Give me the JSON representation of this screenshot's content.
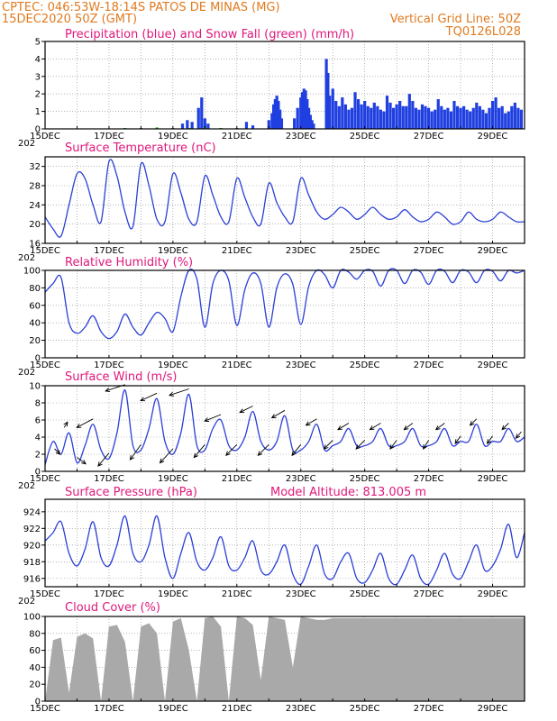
{
  "header": {
    "line1": "CPTEC:   046:53W-18:14S   PATOS DE MINAS (MG)",
    "line2": "15DEC2020 50Z (GMT)",
    "grid_note": "Vertical Grid Line: 50Z",
    "code": "TQ0126L028"
  },
  "colors": {
    "header": "#e07a1f",
    "title": "#e0177b",
    "rain": "#1f3fe0",
    "snow": "#12a012",
    "line": "#2a3fd6",
    "cloud": "#a9a9a9"
  },
  "x_axis": {
    "start_day": 15,
    "end_day": 30,
    "tick_labels": [
      "15DEC",
      "17DEC",
      "19DEC",
      "21DEC",
      "23DEC",
      "25DEC",
      "27DEC",
      "29DEC"
    ],
    "tick_days": [
      15,
      17,
      19,
      21,
      23,
      25,
      27,
      29
    ],
    "year_fragment": "202"
  },
  "chart_data": [
    {
      "id": "precip",
      "type": "bar",
      "title": "Precipitation (blue) and Snow Fall (green) (mm/h)",
      "ylim": [
        0,
        5
      ],
      "yticks": [
        0,
        1,
        2,
        3,
        4,
        5
      ],
      "series": [
        {
          "name": "Precipitation",
          "color": "#1f3fe0",
          "x": [
            19.3,
            19.45,
            19.6,
            19.8,
            19.9,
            20.0,
            20.1,
            21.3,
            21.5,
            22.0,
            22.1,
            22.15,
            22.2,
            22.25,
            22.3,
            22.35,
            22.4,
            22.8,
            22.9,
            23.0,
            23.05,
            23.1,
            23.15,
            23.2,
            23.25,
            23.3,
            23.35,
            23.4,
            23.8,
            23.85,
            23.9,
            24.0,
            24.1,
            24.2,
            24.3,
            24.4,
            24.5,
            24.6,
            24.7,
            24.8,
            24.9,
            25.0,
            25.1,
            25.2,
            25.3,
            25.4,
            25.5,
            25.6,
            25.7,
            25.8,
            25.9,
            26.0,
            26.1,
            26.2,
            26.3,
            26.4,
            26.5,
            26.6,
            26.7,
            26.8,
            26.9,
            27.0,
            27.1,
            27.2,
            27.3,
            27.4,
            27.5,
            27.6,
            27.7,
            27.8,
            27.9,
            28.0,
            28.1,
            28.2,
            28.3,
            28.4,
            28.5,
            28.6,
            28.7,
            28.8,
            28.9,
            29.0,
            29.1,
            29.2,
            29.3,
            29.4,
            29.5,
            29.6,
            29.7,
            29.8,
            29.9
          ],
          "values": [
            0.3,
            0.5,
            0.4,
            1.2,
            1.8,
            0.6,
            0.3,
            0.4,
            0.2,
            0.5,
            0.9,
            1.4,
            1.7,
            1.9,
            1.6,
            1.1,
            0.6,
            0.6,
            1.2,
            1.8,
            2.1,
            2.3,
            2.2,
            1.7,
            1.2,
            0.8,
            0.5,
            0.3,
            4.0,
            3.2,
            1.9,
            2.3,
            1.6,
            1.3,
            1.8,
            1.4,
            1.1,
            1.2,
            2.1,
            1.7,
            1.4,
            1.6,
            1.3,
            1.2,
            1.5,
            1.3,
            1.1,
            1.0,
            1.9,
            1.5,
            1.2,
            1.4,
            1.6,
            1.3,
            1.3,
            2.0,
            1.6,
            1.2,
            1.1,
            1.4,
            1.3,
            1.2,
            1.0,
            1.1,
            1.7,
            1.3,
            1.1,
            1.2,
            1.0,
            1.6,
            1.3,
            1.2,
            1.3,
            1.1,
            1.0,
            1.2,
            1.5,
            1.3,
            1.1,
            0.9,
            1.2,
            1.6,
            1.8,
            1.2,
            1.3,
            0.9,
            1.0,
            1.3,
            1.5,
            1.2,
            1.1
          ]
        },
        {
          "name": "Snow Fall",
          "color": "#12a012",
          "x": [
            17.5,
            18.0,
            18.5,
            19.0,
            19.5,
            20.0,
            20.5,
            21.0
          ],
          "values": [
            0.05,
            0.05,
            0.08,
            0.05,
            0.05,
            0.08,
            0.05,
            0.05
          ]
        }
      ]
    },
    {
      "id": "temp",
      "type": "line",
      "title": "Surface Temperature (nC)",
      "ylim": [
        16,
        34
      ],
      "yticks": [
        16,
        20,
        24,
        28,
        32
      ],
      "x": [
        15,
        15.25,
        15.5,
        15.75,
        16,
        16.25,
        16.5,
        16.75,
        17,
        17.25,
        17.5,
        17.75,
        18,
        18.25,
        18.5,
        18.75,
        19,
        19.25,
        19.5,
        19.75,
        20,
        20.25,
        20.5,
        20.75,
        21,
        21.25,
        21.5,
        21.75,
        22,
        22.25,
        22.5,
        22.75,
        23,
        23.25,
        23.5,
        23.75,
        24,
        24.25,
        24.5,
        24.75,
        25,
        25.25,
        25.5,
        25.75,
        26,
        26.25,
        26.5,
        26.75,
        27,
        27.25,
        27.5,
        27.75,
        28,
        28.25,
        28.5,
        28.75,
        29,
        29.25,
        29.5,
        29.75,
        30
      ],
      "values": [
        21.5,
        19,
        17.5,
        24,
        30.5,
        29.5,
        24,
        20.5,
        33,
        30,
        22.5,
        19.5,
        32.5,
        28,
        21,
        20.5,
        30.5,
        26.5,
        21,
        20.5,
        30,
        26,
        21.5,
        20.5,
        29.5,
        25.5,
        21.5,
        20,
        28.5,
        24.5,
        21.5,
        20.5,
        29.5,
        26,
        22.5,
        21,
        22,
        23.5,
        22.5,
        21,
        22,
        23.5,
        22,
        21,
        21.5,
        23,
        21.5,
        20.5,
        21,
        22.5,
        21.5,
        20,
        20.5,
        22.5,
        21,
        20.5,
        21,
        22.5,
        21.5,
        20.5,
        20.5
      ]
    },
    {
      "id": "rh",
      "type": "line",
      "title": "Relative Humidity (%)",
      "ylim": [
        0,
        100
      ],
      "yticks": [
        0,
        20,
        40,
        60,
        80,
        100
      ],
      "x": [
        15,
        15.25,
        15.5,
        15.75,
        16,
        16.25,
        16.5,
        16.75,
        17,
        17.25,
        17.5,
        17.75,
        18,
        18.25,
        18.5,
        18.75,
        19,
        19.25,
        19.5,
        19.75,
        20,
        20.25,
        20.5,
        20.75,
        21,
        21.25,
        21.5,
        21.75,
        22,
        22.25,
        22.5,
        22.75,
        23,
        23.25,
        23.5,
        23.75,
        24,
        24.25,
        24.5,
        24.75,
        25,
        25.25,
        25.5,
        25.75,
        26,
        26.25,
        26.5,
        26.75,
        27,
        27.25,
        27.5,
        27.75,
        28,
        28.25,
        28.5,
        28.75,
        29,
        29.25,
        29.5,
        29.75,
        30
      ],
      "values": [
        75,
        85,
        92,
        40,
        28,
        35,
        48,
        30,
        22,
        30,
        50,
        35,
        26,
        40,
        52,
        45,
        30,
        70,
        100,
        90,
        35,
        85,
        100,
        88,
        37,
        78,
        97,
        85,
        35,
        80,
        96,
        84,
        38,
        82,
        100,
        95,
        80,
        100,
        98,
        90,
        100,
        99,
        82,
        100,
        100,
        85,
        100,
        98,
        84,
        100,
        99,
        86,
        100,
        98,
        86,
        100,
        99,
        88,
        100,
        97,
        100
      ]
    },
    {
      "id": "wind",
      "type": "line",
      "title": "Surface Wind (m/s)",
      "ylim": [
        0,
        10
      ],
      "yticks": [
        0,
        2,
        4,
        6,
        8,
        10
      ],
      "x": [
        15,
        15.25,
        15.5,
        15.75,
        16,
        16.25,
        16.5,
        16.75,
        17,
        17.25,
        17.5,
        17.75,
        18,
        18.25,
        18.5,
        18.75,
        19,
        19.25,
        19.5,
        19.75,
        20,
        20.25,
        20.5,
        20.75,
        21,
        21.25,
        21.5,
        21.75,
        22,
        22.25,
        22.5,
        22.75,
        23,
        23.25,
        23.5,
        23.75,
        24,
        24.25,
        24.5,
        24.75,
        25,
        25.25,
        25.5,
        25.75,
        26,
        26.25,
        26.5,
        26.75,
        27,
        27.25,
        27.5,
        27.75,
        28,
        28.25,
        28.5,
        28.75,
        29,
        29.25,
        29.5,
        29.75,
        30
      ],
      "values": [
        0.8,
        3.5,
        2.0,
        4.5,
        1.0,
        3.0,
        5.5,
        2.5,
        1.5,
        4.5,
        9.5,
        3.0,
        2.5,
        5.0,
        8.5,
        3.5,
        2.0,
        4.5,
        9.0,
        3.0,
        2.5,
        5.0,
        6.0,
        3.0,
        2.5,
        4.0,
        7.0,
        3.5,
        2.5,
        3.5,
        6.5,
        2.5,
        2.5,
        3.5,
        5.5,
        2.5,
        3.0,
        3.5,
        5.0,
        3.0,
        3.0,
        3.5,
        5.0,
        3.0,
        3.0,
        3.5,
        5.0,
        3.0,
        3.0,
        3.5,
        5.0,
        3.0,
        3.5,
        3.5,
        5.5,
        3.0,
        3.5,
        3.5,
        5.0,
        3.5,
        4.0
      ],
      "arrows": {
        "x": [
          15.3,
          15.6,
          16.0,
          16.5,
          17.0,
          17.5,
          18.0,
          18.5,
          19.0,
          19.5,
          20.0,
          20.5,
          21.0,
          21.5,
          22.0,
          22.5,
          23.0,
          23.5,
          24.0,
          24.5,
          25.0,
          25.5,
          26.0,
          26.5,
          27.0,
          27.5,
          28.0,
          28.5,
          29.0,
          29.5,
          29.9
        ],
        "u": [
          0.5,
          0.3,
          0.8,
          -1.5,
          -1.0,
          -1.8,
          -1.0,
          -1.5,
          -1.2,
          -1.8,
          -1.0,
          -1.5,
          -1.0,
          -1.2,
          -1.0,
          -1.2,
          -0.8,
          -1.0,
          -0.8,
          -1.0,
          -0.8,
          -1.0,
          -0.6,
          -0.8,
          -0.5,
          -0.8,
          -0.5,
          -0.6,
          -0.5,
          -0.6,
          -0.5
        ],
        "v": [
          -0.5,
          0.5,
          -0.6,
          -0.8,
          -1.2,
          -0.6,
          -1.4,
          -0.7,
          -1.3,
          -0.6,
          -1.2,
          -0.6,
          -1.0,
          -0.6,
          -1.0,
          -0.7,
          -1.0,
          -0.6,
          -0.8,
          -0.6,
          -0.8,
          -0.6,
          -0.8,
          -0.6,
          -0.8,
          -0.6,
          -0.7,
          -0.6,
          -0.7,
          -0.6,
          -0.6
        ]
      }
    },
    {
      "id": "pressure",
      "type": "line",
      "title": "Surface Pressure (hPa)",
      "note": "Model Altitude: 813.005 m",
      "ylim": [
        915,
        925.5
      ],
      "yticks": [
        916,
        918,
        920,
        922,
        924
      ],
      "x": [
        15,
        15.25,
        15.5,
        15.75,
        16,
        16.25,
        16.5,
        16.75,
        17,
        17.25,
        17.5,
        17.75,
        18,
        18.25,
        18.5,
        18.75,
        19,
        19.25,
        19.5,
        19.75,
        20,
        20.25,
        20.5,
        20.75,
        21,
        21.25,
        21.5,
        21.75,
        22,
        22.25,
        22.5,
        22.75,
        23,
        23.25,
        23.5,
        23.75,
        24,
        24.25,
        24.5,
        24.75,
        25,
        25.25,
        25.5,
        25.75,
        26,
        26.25,
        26.5,
        26.75,
        27,
        27.25,
        27.5,
        27.75,
        28,
        28.25,
        28.5,
        28.75,
        29,
        29.25,
        29.5,
        29.75,
        30
      ],
      "values": [
        920.5,
        921.5,
        922.8,
        919.0,
        917.5,
        919.5,
        922.8,
        918.5,
        917.5,
        920.0,
        923.5,
        919.0,
        918.0,
        920.0,
        923.5,
        918.5,
        916.0,
        919.0,
        921.5,
        918.0,
        917.0,
        918.5,
        921.0,
        917.5,
        917.0,
        918.5,
        920.5,
        917.0,
        916.5,
        918.0,
        920.0,
        916.5,
        915.3,
        917.5,
        920.0,
        916.5,
        916.0,
        918.0,
        919.0,
        916.0,
        915.5,
        917.0,
        919.0,
        916.0,
        915.3,
        917.0,
        918.8,
        916.0,
        915.3,
        917.0,
        919.0,
        916.5,
        916.0,
        918.0,
        920.0,
        917.0,
        917.5,
        919.5,
        922.5,
        918.5,
        921.5
      ]
    },
    {
      "id": "cloud",
      "type": "area",
      "title": "Cloud Cover (%)",
      "ylim": [
        0,
        100
      ],
      "yticks": [
        0,
        20,
        40,
        60,
        80,
        100
      ],
      "x": [
        15,
        15.25,
        15.5,
        15.75,
        16,
        16.25,
        16.5,
        16.75,
        17,
        17.25,
        17.5,
        17.75,
        18,
        18.25,
        18.5,
        18.75,
        19,
        19.25,
        19.5,
        19.75,
        20,
        20.25,
        20.5,
        20.75,
        21,
        21.25,
        21.5,
        21.75,
        22,
        22.25,
        22.5,
        22.75,
        23,
        23.25,
        23.5,
        23.75,
        24,
        24.5,
        25,
        25.5,
        26,
        26.5,
        27,
        27.5,
        28,
        28.5,
        29,
        29.5,
        30
      ],
      "values": [
        0,
        72,
        75,
        10,
        76,
        80,
        74,
        0,
        88,
        90,
        70,
        0,
        88,
        92,
        80,
        0,
        94,
        98,
        60,
        0,
        98,
        100,
        88,
        0,
        100,
        98,
        90,
        25,
        100,
        98,
        96,
        40,
        100,
        98,
        96,
        96,
        98,
        98,
        98,
        98,
        98,
        98,
        98,
        98,
        98,
        98,
        98,
        98,
        98
      ]
    }
  ]
}
